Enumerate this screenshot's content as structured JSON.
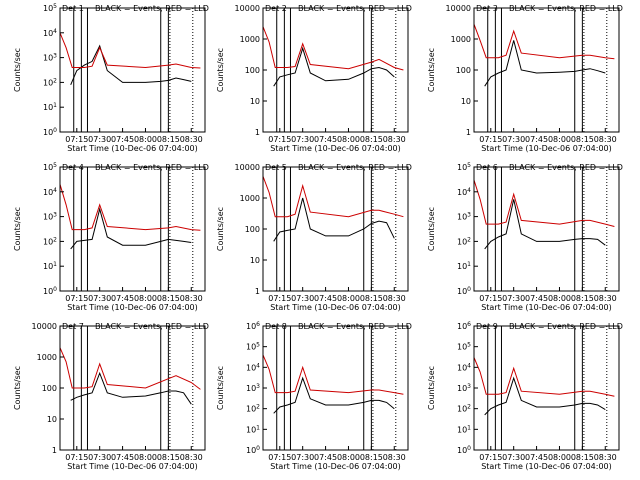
{
  "chart_data": [
    {
      "type": "line",
      "title": "Det 1",
      "title_right": "BLACK = Events, RED = LLD",
      "ylabel": "Counts/sec",
      "xlabel": "Start Time (10-Dec-06 07:04:00)",
      "yscale": "log",
      "ylim": [
        1,
        100000
      ],
      "ytick_labels": [
        "10^0",
        "10^1",
        "10^2",
        "10^3",
        "10^4",
        "10^5"
      ],
      "xlim_minutes": [
        0,
        95
      ],
      "xtick_labels": [
        "07:15",
        "07:30",
        "07:45",
        "08:00",
        "08:15",
        "08:30"
      ],
      "solid_vlines": [
        "07:13",
        "07:18",
        "07:22",
        "08:10",
        "08:15"
      ],
      "dotted_vlines": [
        "08:16",
        "08:31"
      ],
      "series": [
        {
          "name": "BLACK = Events",
          "color": "#000000",
          "x": [
            "07:11",
            "07:15",
            "07:20",
            "07:25",
            "07:30",
            "07:35",
            "07:45",
            "08:00",
            "08:10",
            "08:15",
            "08:20",
            "08:25",
            "08:30"
          ],
          "values": [
            80,
            300,
            500,
            700,
            3000,
            300,
            100,
            100,
            110,
            120,
            150,
            130,
            110
          ]
        },
        {
          "name": "RED = LLD",
          "color": "#cc0000",
          "x": [
            "07:04",
            "07:08",
            "07:12",
            "07:20",
            "07:25",
            "07:30",
            "07:35",
            "08:00",
            "08:15",
            "08:20",
            "08:30",
            "08:36"
          ],
          "values": [
            10000,
            2500,
            400,
            400,
            450,
            2500,
            500,
            400,
            500,
            550,
            400,
            380
          ]
        }
      ]
    },
    {
      "type": "line",
      "title": "Det 2",
      "title_right": "BLACK = Events, RED = LLD",
      "ylabel": "Counts/sec",
      "xlabel": "Start Time (10-Dec-06 07:04:00)",
      "yscale": "log",
      "ylim": [
        1,
        10000
      ],
      "ytick_labels": [
        "1",
        "10",
        "100",
        "1000",
        "10000"
      ],
      "xlim_minutes": [
        0,
        95
      ],
      "xtick_labels": [
        "07:15",
        "07:30",
        "07:45",
        "08:00",
        "08:15",
        "08:30"
      ],
      "solid_vlines": [
        "07:13",
        "07:18",
        "07:22",
        "08:10",
        "08:15"
      ],
      "dotted_vlines": [
        "08:16",
        "08:31"
      ],
      "series": [
        {
          "name": "BLACK = Events",
          "color": "#000000",
          "x": [
            "07:11",
            "07:15",
            "07:20",
            "07:25",
            "07:30",
            "07:35",
            "07:45",
            "08:00",
            "08:10",
            "08:15",
            "08:20",
            "08:25",
            "08:30"
          ],
          "values": [
            30,
            60,
            70,
            80,
            500,
            80,
            45,
            50,
            80,
            110,
            120,
            100,
            60
          ]
        },
        {
          "name": "RED = LLD",
          "color": "#cc0000",
          "x": [
            "07:04",
            "07:08",
            "07:12",
            "07:20",
            "07:25",
            "07:30",
            "07:35",
            "08:00",
            "08:15",
            "08:20",
            "08:30",
            "08:36"
          ],
          "values": [
            2500,
            800,
            120,
            120,
            130,
            700,
            150,
            110,
            180,
            220,
            120,
            100
          ]
        }
      ]
    },
    {
      "type": "line",
      "title": "Det 3",
      "title_right": "BLACK = Events, RED = LLD",
      "ylabel": "Counts/sec",
      "xlabel": "Start Time (10-Dec-06 07:04:00)",
      "yscale": "log",
      "ylim": [
        1,
        10000
      ],
      "ytick_labels": [
        "1",
        "10",
        "100",
        "1000",
        "10000"
      ],
      "xlim_minutes": [
        0,
        95
      ],
      "xtick_labels": [
        "07:15",
        "07:30",
        "07:45",
        "08:00",
        "08:15",
        "08:30"
      ],
      "solid_vlines": [
        "07:13",
        "07:18",
        "07:22",
        "08:10",
        "08:15"
      ],
      "dotted_vlines": [
        "08:16",
        "08:31"
      ],
      "series": [
        {
          "name": "BLACK = Events",
          "color": "#000000",
          "x": [
            "07:11",
            "07:15",
            "07:20",
            "07:25",
            "07:30",
            "07:35",
            "07:45",
            "08:00",
            "08:10",
            "08:15",
            "08:20",
            "08:25",
            "08:30"
          ],
          "values": [
            30,
            60,
            80,
            100,
            900,
            100,
            80,
            85,
            90,
            100,
            110,
            95,
            80
          ]
        },
        {
          "name": "RED = LLD",
          "color": "#cc0000",
          "x": [
            "07:04",
            "07:08",
            "07:12",
            "07:20",
            "07:25",
            "07:30",
            "07:35",
            "08:00",
            "08:15",
            "08:20",
            "08:30",
            "08:36"
          ],
          "values": [
            3000,
            900,
            250,
            250,
            300,
            1800,
            350,
            250,
            300,
            300,
            250,
            230
          ]
        }
      ]
    },
    {
      "type": "line",
      "title": "Det 4",
      "title_right": "BLACK = Events, RED = LLD",
      "ylabel": "Counts/sec",
      "xlabel": "Start Time (10-Dec-06 07:04:00)",
      "yscale": "log",
      "ylim": [
        1,
        100000
      ],
      "ytick_labels": [
        "10^0",
        "10^1",
        "10^2",
        "10^3",
        "10^4",
        "10^5"
      ],
      "xlim_minutes": [
        0,
        95
      ],
      "xtick_labels": [
        "07:15",
        "07:30",
        "07:45",
        "08:00",
        "08:15",
        "08:30"
      ],
      "solid_vlines": [
        "07:13",
        "07:18",
        "07:22",
        "08:10",
        "08:15"
      ],
      "dotted_vlines": [
        "08:16",
        "08:31"
      ],
      "series": [
        {
          "name": "BLACK = Events",
          "color": "#000000",
          "x": [
            "07:11",
            "07:15",
            "07:20",
            "07:25",
            "07:30",
            "07:35",
            "07:45",
            "08:00",
            "08:10",
            "08:15",
            "08:20",
            "08:25",
            "08:30"
          ],
          "values": [
            50,
            100,
            110,
            120,
            2000,
            150,
            70,
            70,
            100,
            120,
            110,
            100,
            90
          ]
        },
        {
          "name": "RED = LLD",
          "color": "#cc0000",
          "x": [
            "07:04",
            "07:08",
            "07:12",
            "07:20",
            "07:25",
            "07:30",
            "07:35",
            "08:00",
            "08:15",
            "08:20",
            "08:30",
            "08:36"
          ],
          "values": [
            20000,
            3000,
            300,
            300,
            350,
            3000,
            400,
            300,
            350,
            400,
            300,
            280
          ]
        }
      ]
    },
    {
      "type": "line",
      "title": "Det 5",
      "title_right": "BLACK = Events, RED = LLD",
      "ylabel": "Counts/sec",
      "xlabel": "Start Time (10-Dec-06 07:04:00)",
      "yscale": "log",
      "ylim": [
        1,
        10000
      ],
      "ytick_labels": [
        "1",
        "10",
        "100",
        "1000",
        "10000"
      ],
      "xlim_minutes": [
        0,
        95
      ],
      "xtick_labels": [
        "07:15",
        "07:30",
        "07:45",
        "08:00",
        "08:15",
        "08:30"
      ],
      "solid_vlines": [
        "07:13",
        "07:18",
        "07:22",
        "08:10",
        "08:15"
      ],
      "dotted_vlines": [
        "08:16",
        "08:31"
      ],
      "series": [
        {
          "name": "BLACK = Events",
          "color": "#000000",
          "x": [
            "07:11",
            "07:15",
            "07:20",
            "07:25",
            "07:30",
            "07:35",
            "07:45",
            "08:00",
            "08:10",
            "08:15",
            "08:20",
            "08:25",
            "08:30"
          ],
          "values": [
            40,
            80,
            90,
            100,
            1000,
            100,
            60,
            60,
            100,
            150,
            180,
            160,
            50
          ]
        },
        {
          "name": "RED = LLD",
          "color": "#cc0000",
          "x": [
            "07:04",
            "07:08",
            "07:12",
            "07:20",
            "07:25",
            "07:30",
            "07:35",
            "08:00",
            "08:15",
            "08:20",
            "08:30",
            "08:36"
          ],
          "values": [
            5000,
            1500,
            250,
            250,
            300,
            2500,
            350,
            250,
            400,
            400,
            300,
            250
          ]
        }
      ]
    },
    {
      "type": "line",
      "title": "Det 6",
      "title_right": "BLACK = Events, RED = LLD",
      "ylabel": "Counts/sec",
      "xlabel": "Start Time (10-Dec-06 07:04:00)",
      "yscale": "log",
      "ylim": [
        1,
        100000
      ],
      "ytick_labels": [
        "10^0",
        "10^1",
        "10^2",
        "10^3",
        "10^4",
        "10^5"
      ],
      "xlim_minutes": [
        0,
        95
      ],
      "xtick_labels": [
        "07:15",
        "07:30",
        "07:45",
        "08:00",
        "08:15",
        "08:30"
      ],
      "solid_vlines": [
        "07:13",
        "07:18",
        "07:22",
        "08:10",
        "08:15"
      ],
      "dotted_vlines": [
        "08:16",
        "08:31"
      ],
      "series": [
        {
          "name": "BLACK = Events",
          "color": "#000000",
          "x": [
            "07:11",
            "07:15",
            "07:20",
            "07:25",
            "07:30",
            "07:35",
            "07:45",
            "08:00",
            "08:10",
            "08:15",
            "08:20",
            "08:25",
            "08:30"
          ],
          "values": [
            50,
            100,
            150,
            200,
            5000,
            200,
            100,
            100,
            120,
            130,
            130,
            120,
            70
          ]
        },
        {
          "name": "RED = LLD",
          "color": "#cc0000",
          "x": [
            "07:04",
            "07:08",
            "07:12",
            "07:20",
            "07:25",
            "07:30",
            "07:35",
            "08:00",
            "08:15",
            "08:20",
            "08:30",
            "08:36"
          ],
          "values": [
            30000,
            5000,
            500,
            500,
            600,
            8000,
            700,
            500,
            700,
            700,
            500,
            400
          ]
        }
      ]
    },
    {
      "type": "line",
      "title": "Det 7",
      "title_right": "BLACK = Events, RED = LLD",
      "ylabel": "Counts/sec",
      "xlabel": "Start Time (10-Dec-06 07:04:00)",
      "yscale": "log",
      "ylim": [
        1,
        10000
      ],
      "ytick_labels": [
        "1",
        "10",
        "100",
        "1000",
        "10000"
      ],
      "xlim_minutes": [
        0,
        95
      ],
      "xtick_labels": [
        "07:15",
        "07:30",
        "07:45",
        "08:00",
        "08:15",
        "08:30"
      ],
      "solid_vlines": [
        "07:13",
        "07:18",
        "07:22",
        "08:10",
        "08:15"
      ],
      "dotted_vlines": [
        "08:16",
        "08:31"
      ],
      "series": [
        {
          "name": "BLACK = Events",
          "color": "#000000",
          "x": [
            "07:11",
            "07:15",
            "07:20",
            "07:25",
            "07:30",
            "07:35",
            "07:45",
            "08:00",
            "08:10",
            "08:15",
            "08:20",
            "08:25",
            "08:30"
          ],
          "values": [
            40,
            50,
            60,
            70,
            300,
            70,
            50,
            55,
            70,
            80,
            80,
            70,
            30
          ]
        },
        {
          "name": "RED = LLD",
          "color": "#cc0000",
          "x": [
            "07:04",
            "07:08",
            "07:12",
            "07:20",
            "07:25",
            "07:30",
            "07:35",
            "08:00",
            "08:15",
            "08:20",
            "08:30",
            "08:36"
          ],
          "values": [
            2000,
            700,
            100,
            100,
            110,
            600,
            130,
            100,
            200,
            250,
            150,
            90
          ]
        }
      ]
    },
    {
      "type": "line",
      "title": "Det 8",
      "title_right": "BLACK = Events, RED = LLD",
      "ylabel": "Counts/sec",
      "xlabel": "Start Time (10-Dec-06 07:04:00)",
      "yscale": "log",
      "ylim": [
        1,
        1000000
      ],
      "ytick_labels": [
        "10^0",
        "10^1",
        "10^2",
        "10^3",
        "10^4",
        "10^5",
        "10^6"
      ],
      "xlim_minutes": [
        0,
        95
      ],
      "xtick_labels": [
        "07:15",
        "07:30",
        "07:45",
        "08:00",
        "08:15",
        "08:30"
      ],
      "solid_vlines": [
        "07:13",
        "07:18",
        "07:22",
        "08:10",
        "08:15"
      ],
      "dotted_vlines": [
        "08:16",
        "08:31"
      ],
      "series": [
        {
          "name": "BLACK = Events",
          "color": "#000000",
          "x": [
            "07:11",
            "07:15",
            "07:20",
            "07:25",
            "07:30",
            "07:35",
            "07:45",
            "08:00",
            "08:10",
            "08:15",
            "08:20",
            "08:25",
            "08:30"
          ],
          "values": [
            60,
            120,
            150,
            200,
            3000,
            300,
            150,
            150,
            200,
            250,
            250,
            200,
            100
          ]
        },
        {
          "name": "RED = LLD",
          "color": "#cc0000",
          "x": [
            "07:04",
            "07:08",
            "07:12",
            "07:20",
            "07:25",
            "07:30",
            "07:35",
            "08:00",
            "08:15",
            "08:20",
            "08:30",
            "08:36"
          ],
          "values": [
            40000,
            8000,
            600,
            600,
            700,
            10000,
            800,
            600,
            800,
            800,
            600,
            500
          ]
        }
      ]
    },
    {
      "type": "line",
      "title": "Det 9",
      "title_right": "BLACK = Events, RED = LLD",
      "ylabel": "Counts/sec",
      "xlabel": "Start Time (10-Dec-06 07:04:00)",
      "yscale": "log",
      "ylim": [
        1,
        1000000
      ],
      "ytick_labels": [
        "10^0",
        "10^1",
        "10^2",
        "10^3",
        "10^4",
        "10^5",
        "10^6"
      ],
      "xlim_minutes": [
        0,
        95
      ],
      "xtick_labels": [
        "07:15",
        "07:30",
        "07:45",
        "08:00",
        "08:15",
        "08:30"
      ],
      "solid_vlines": [
        "07:13",
        "07:18",
        "07:22",
        "08:10",
        "08:15"
      ],
      "dotted_vlines": [
        "08:16",
        "08:31"
      ],
      "series": [
        {
          "name": "BLACK = Events",
          "color": "#000000",
          "x": [
            "07:11",
            "07:15",
            "07:20",
            "07:25",
            "07:30",
            "07:35",
            "07:45",
            "08:00",
            "08:10",
            "08:15",
            "08:20",
            "08:25",
            "08:30"
          ],
          "values": [
            50,
            100,
            150,
            200,
            3000,
            250,
            120,
            120,
            150,
            180,
            180,
            150,
            90
          ]
        },
        {
          "name": "RED = LLD",
          "color": "#cc0000",
          "x": [
            "07:04",
            "07:08",
            "07:12",
            "07:20",
            "07:25",
            "07:30",
            "07:35",
            "08:00",
            "08:15",
            "08:20",
            "08:30",
            "08:36"
          ],
          "values": [
            30000,
            6000,
            500,
            500,
            600,
            9000,
            700,
            500,
            700,
            700,
            500,
            400
          ]
        }
      ]
    }
  ]
}
